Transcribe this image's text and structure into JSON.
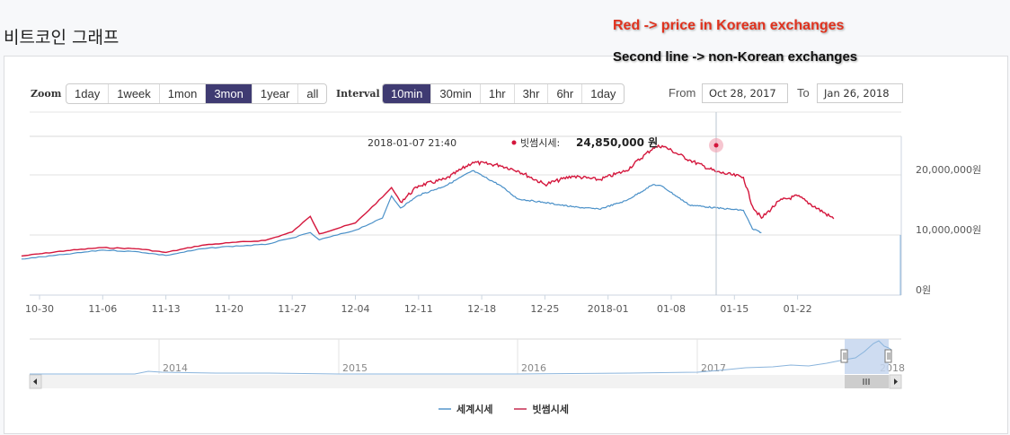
{
  "page": {
    "title": "비트코인 그래프"
  },
  "annotations": {
    "red_note": "Red -> price in Korean exchanges",
    "second_note": "Second line -> non-Korean exchanges"
  },
  "controls": {
    "zoom_label": "Zoom",
    "zoom_buttons": [
      "1day",
      "1week",
      "1mon",
      "3mon",
      "1year",
      "all"
    ],
    "zoom_active": "3mon",
    "interval_label": "Interval",
    "interval_buttons": [
      "10min",
      "30min",
      "1hr",
      "3hr",
      "6hr",
      "1day"
    ],
    "interval_active": "10min",
    "from_label": "From",
    "from_value": "Oct 28, 2017",
    "to_label": "To",
    "to_value": "Jan 26, 2018"
  },
  "tooltip": {
    "datetime": "2018-01-07 21:40",
    "series_label": "빗썸시세:",
    "value": "24,850,000 원"
  },
  "colors": {
    "korean_series": "#d4163c",
    "world_series": "#4a90c8",
    "active_button": "#3f3b72",
    "navigator_selection": "#c6d6ee"
  },
  "legend": [
    "세계시세",
    "빗썸시세"
  ],
  "navigator": {
    "year_labels": [
      "2014",
      "2015",
      "2016",
      "2017",
      "2018"
    ]
  },
  "chart_data": {
    "type": "line",
    "title": "비트코인 그래프",
    "xlabel": "",
    "ylabel": "",
    "x_tick_labels": [
      "10-30",
      "11-06",
      "11-13",
      "11-20",
      "11-27",
      "12-04",
      "12-11",
      "12-18",
      "12-25",
      "2018-01",
      "01-08",
      "01-15",
      "01-22"
    ],
    "y_tick_labels": [
      "0원",
      "10,000,000원",
      "20,000,000원"
    ],
    "ylim": [
      0,
      26000000
    ],
    "grid": true,
    "legend_position": "bottom",
    "x": [
      "2017-10-28",
      "2017-11-02",
      "2017-11-06",
      "2017-11-10",
      "2017-11-13",
      "2017-11-17",
      "2017-11-20",
      "2017-11-24",
      "2017-11-27",
      "2017-11-29",
      "2017-11-30",
      "2017-12-04",
      "2017-12-07",
      "2017-12-08",
      "2017-12-09",
      "2017-12-11",
      "2017-12-14",
      "2017-12-17",
      "2017-12-20",
      "2017-12-22",
      "2017-12-25",
      "2017-12-28",
      "2017-12-31",
      "2018-01-03",
      "2018-01-06",
      "2018-01-07",
      "2018-01-10",
      "2018-01-13",
      "2018-01-16",
      "2018-01-17",
      "2018-01-18",
      "2018-01-20",
      "2018-01-22",
      "2018-01-26"
    ],
    "series": [
      {
        "name": "빗썸시세",
        "color": "#d4163c",
        "values": [
          6500000,
          7400000,
          7900000,
          7700000,
          7100000,
          8300000,
          8700000,
          9100000,
          10500000,
          13100000,
          10200000,
          12000000,
          16300000,
          17900000,
          15500000,
          18200000,
          19300000,
          22100000,
          21600000,
          20700000,
          18400000,
          19800000,
          19200000,
          20700000,
          24500000,
          24850000,
          22500000,
          20500000,
          19600000,
          14800000,
          12800000,
          15700000,
          16500000,
          12700000
        ]
      },
      {
        "name": "세계시세",
        "color": "#4a90c8",
        "values": [
          6000000,
          6800000,
          7500000,
          7200000,
          6600000,
          7700000,
          8100000,
          8400000,
          9500000,
          10400000,
          9200000,
          10800000,
          12800000,
          16500000,
          14500000,
          16600000,
          18200000,
          20700000,
          18300000,
          16000000,
          15400000,
          14700000,
          14300000,
          15700000,
          18400000,
          18100000,
          15000000,
          14500000,
          14100000,
          11000000,
          10400000,
          null,
          null,
          null
        ]
      }
    ]
  }
}
